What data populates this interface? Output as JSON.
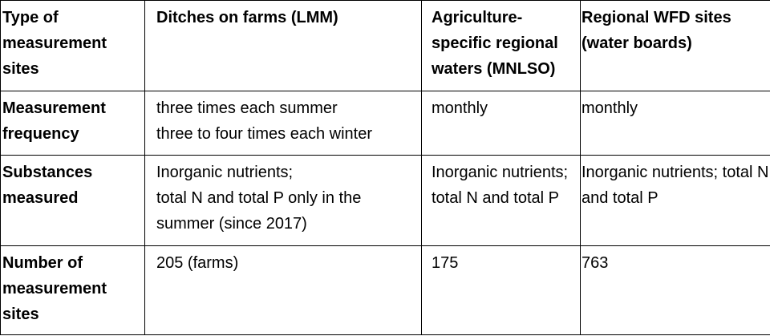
{
  "table": {
    "header": {
      "site_type": "Type of measurement sites",
      "col_lmm": "Ditches on farms (LMM)",
      "col_mnlso": "Agriculture-specific regional waters (MNLSO)",
      "col_wfd": "Regional WFD sites (water boards)"
    },
    "rows": [
      {
        "label": "Measurement frequency",
        "lmm": [
          "three times each summer",
          "three to four times each winter"
        ],
        "mnlso": "monthly",
        "wfd": "monthly"
      },
      {
        "label": "Substances measured",
        "lmm": [
          "Inorganic nutrients;",
          "total N and total P only in the summer (since 2017)"
        ],
        "mnlso": "Inorganic nutrients; total N and total P",
        "wfd": "Inorganic nutrients; total N and total P"
      },
      {
        "label": "Number of measurement sites",
        "lmm": [
          "205 (farms)"
        ],
        "mnlso": "175",
        "wfd": "763"
      }
    ]
  }
}
